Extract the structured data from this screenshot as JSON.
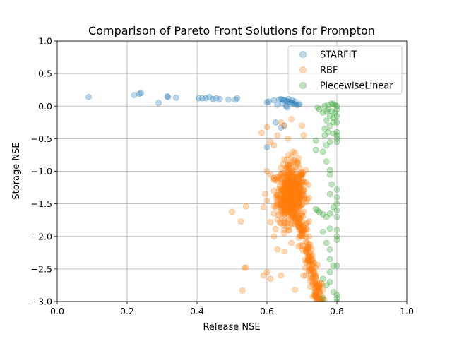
{
  "chart_data": {
    "type": "scatter",
    "title": "Comparison of Pareto Front Solutions for Prompton",
    "xlabel": "Release NSE",
    "ylabel": "Storage NSE",
    "xlim": [
      0.0,
      1.0
    ],
    "ylim": [
      -3.0,
      1.0
    ],
    "xticks": [
      "0.0",
      "0.2",
      "0.4",
      "0.6",
      "0.8",
      "1.0"
    ],
    "yticks": [
      "1.0",
      "0.5",
      "0.0",
      "−0.5",
      "−1.0",
      "−1.5",
      "−2.0",
      "−2.5",
      "−3.0"
    ],
    "grid": true,
    "legend_position": "top-right",
    "series": [
      {
        "name": "STARFIT",
        "color": "#1f77b4",
        "points": [
          [
            0.09,
            0.14
          ],
          [
            0.22,
            0.17
          ],
          [
            0.235,
            0.19
          ],
          [
            0.24,
            0.2
          ],
          [
            0.29,
            0.05
          ],
          [
            0.315,
            0.15
          ],
          [
            0.317,
            0.14
          ],
          [
            0.34,
            0.13
          ],
          [
            0.405,
            0.12
          ],
          [
            0.415,
            0.12
          ],
          [
            0.425,
            0.12
          ],
          [
            0.435,
            0.14
          ],
          [
            0.445,
            0.11
          ],
          [
            0.455,
            0.12
          ],
          [
            0.465,
            0.11
          ],
          [
            0.49,
            0.1
          ],
          [
            0.51,
            0.1
          ],
          [
            0.515,
            0.12
          ],
          [
            0.6,
            0.06
          ],
          [
            0.605,
            0.07
          ],
          [
            0.6,
            -0.63
          ],
          [
            0.62,
            0.09
          ],
          [
            0.625,
            -0.25
          ],
          [
            0.635,
            0.1
          ],
          [
            0.64,
            0.11
          ],
          [
            0.645,
            0.1
          ],
          [
            0.65,
            0.09
          ],
          [
            0.655,
            0.08
          ],
          [
            0.66,
            0.07
          ],
          [
            0.665,
            0.06
          ],
          [
            0.67,
            0.05
          ],
          [
            0.675,
            0.04
          ],
          [
            0.68,
            0.03
          ],
          [
            0.685,
            0.02
          ],
          [
            0.69,
            0.02
          ],
          [
            0.64,
            -0.33
          ],
          [
            0.65,
            -0.3
          ],
          [
            0.658,
            -0.02
          ],
          [
            0.645,
            0.04
          ],
          [
            0.672,
            0.09
          ],
          [
            0.662,
            0.11
          ],
          [
            0.63,
            0.02
          ],
          [
            0.68,
            0.07
          ],
          [
            0.693,
            0.03
          ],
          [
            0.655,
            0.0
          ]
        ]
      },
      {
        "name": "RBF",
        "color": "#ff7f0e",
        "points": [
          [
            0.585,
            -0.41
          ],
          [
            0.6,
            -0.32
          ],
          [
            0.64,
            -0.25
          ],
          [
            0.65,
            -0.3
          ],
          [
            0.67,
            -0.2
          ],
          [
            0.7,
            -0.3
          ],
          [
            0.705,
            -0.45
          ],
          [
            0.61,
            -0.55
          ],
          [
            0.62,
            -0.6
          ],
          [
            0.63,
            -0.45
          ],
          [
            0.66,
            -0.5
          ],
          [
            0.675,
            -0.7
          ],
          [
            0.6,
            -1.0
          ],
          [
            0.61,
            -1.05
          ],
          [
            0.62,
            -1.1
          ],
          [
            0.595,
            -1.35
          ],
          [
            0.6,
            -1.45
          ],
          [
            0.59,
            -1.55
          ],
          [
            0.62,
            -1.65
          ],
          [
            0.61,
            -1.78
          ],
          [
            0.5,
            -1.62
          ],
          [
            0.525,
            -1.77
          ],
          [
            0.54,
            -1.54
          ],
          [
            0.535,
            -2.48
          ],
          [
            0.54,
            -2.48
          ],
          [
            0.53,
            -2.83
          ],
          [
            0.59,
            -2.6
          ],
          [
            0.6,
            -2.55
          ],
          [
            0.61,
            -2.65
          ],
          [
            0.63,
            -2.2
          ],
          [
            0.65,
            -2.23
          ],
          [
            0.67,
            -2.1
          ],
          [
            0.69,
            -2.15
          ],
          [
            0.64,
            -2.6
          ],
          [
            0.68,
            -2.82
          ],
          [
            0.72,
            -2.3
          ],
          [
            0.73,
            -2.45
          ],
          [
            0.74,
            -2.6
          ],
          [
            0.745,
            -2.8
          ],
          [
            0.75,
            -2.95
          ],
          [
            0.755,
            -3.0
          ],
          [
            0.735,
            -2.9
          ],
          [
            0.71,
            -2.2
          ],
          [
            0.7,
            -1.95
          ],
          [
            0.72,
            -2.0
          ],
          [
            0.715,
            -1.8
          ],
          [
            0.71,
            -1.9
          ],
          [
            0.65,
            -1.9
          ],
          [
            0.66,
            -1.85
          ],
          [
            0.62,
            -2.0
          ],
          [
            0.68,
            -1.7
          ],
          [
            0.69,
            -1.85
          ],
          [
            0.7,
            -1.65
          ],
          [
            0.73,
            -2.7
          ],
          [
            0.74,
            -2.9
          ],
          [
            0.725,
            -2.5
          ],
          [
            0.705,
            -2.6
          ],
          [
            0.74,
            -2.75
          ],
          [
            0.75,
            -2.85
          ],
          [
            0.728,
            -2.35
          ],
          [
            0.64,
            -1.8
          ],
          [
            0.66,
            -1.75
          ],
          [
            0.67,
            -1.8
          ],
          [
            0.63,
            -1.15
          ],
          [
            0.64,
            -0.95
          ],
          [
            0.65,
            -0.82
          ],
          [
            0.66,
            -0.9
          ],
          [
            0.67,
            -0.78
          ],
          [
            0.68,
            -0.72
          ],
          [
            0.69,
            -0.8
          ]
        ],
        "cluster": {
          "x_min": 0.62,
          "x_max": 0.72,
          "y_min": -1.7,
          "y_max": -0.75,
          "center": [
            0.67,
            -1.35
          ],
          "approx_count": 500
        }
      },
      {
        "name": "PiecewiseLinear",
        "color": "#2ca02c",
        "points": [
          [
            0.745,
            -0.02
          ],
          [
            0.75,
            -0.05
          ],
          [
            0.76,
            -0.1
          ],
          [
            0.765,
            0.0
          ],
          [
            0.77,
            -0.08
          ],
          [
            0.775,
            0.02
          ],
          [
            0.78,
            -0.15
          ],
          [
            0.785,
            0.04
          ],
          [
            0.79,
            0.03
          ],
          [
            0.795,
            0.02
          ],
          [
            0.8,
            0.0
          ],
          [
            0.8,
            -0.05
          ],
          [
            0.8,
            -0.15
          ],
          [
            0.79,
            -0.25
          ],
          [
            0.78,
            -0.3
          ],
          [
            0.77,
            -0.22
          ],
          [
            0.775,
            -0.4
          ],
          [
            0.8,
            -0.4
          ],
          [
            0.8,
            -0.45
          ],
          [
            0.8,
            -0.5
          ],
          [
            0.8,
            -0.55
          ],
          [
            0.79,
            -0.42
          ],
          [
            0.78,
            -0.55
          ],
          [
            0.77,
            -0.6
          ],
          [
            0.765,
            -0.45
          ],
          [
            0.74,
            -0.53
          ],
          [
            0.74,
            -0.67
          ],
          [
            0.76,
            -0.7
          ],
          [
            0.77,
            -0.85
          ],
          [
            0.78,
            -0.98
          ],
          [
            0.78,
            -1.05
          ],
          [
            0.785,
            -1.2
          ],
          [
            0.78,
            -1.35
          ],
          [
            0.8,
            -1.28
          ],
          [
            0.8,
            -1.4
          ],
          [
            0.8,
            -1.5
          ],
          [
            0.8,
            -1.6
          ],
          [
            0.8,
            -1.7
          ],
          [
            0.79,
            -1.55
          ],
          [
            0.78,
            -1.65
          ],
          [
            0.74,
            -1.58
          ],
          [
            0.745,
            -1.6
          ],
          [
            0.75,
            -1.63
          ],
          [
            0.76,
            -1.66
          ],
          [
            0.77,
            -1.7
          ],
          [
            0.78,
            -1.88
          ],
          [
            0.76,
            -1.93
          ],
          [
            0.8,
            -1.9
          ],
          [
            0.8,
            -2.0
          ],
          [
            0.8,
            -2.05
          ],
          [
            0.77,
            -2.1
          ],
          [
            0.78,
            -2.2
          ],
          [
            0.78,
            -2.35
          ],
          [
            0.79,
            -2.45
          ],
          [
            0.8,
            -2.45
          ],
          [
            0.78,
            -2.55
          ],
          [
            0.76,
            -2.65
          ],
          [
            0.78,
            -2.7
          ],
          [
            0.79,
            -2.85
          ],
          [
            0.8,
            -2.9
          ],
          [
            0.8,
            -2.95
          ],
          [
            0.8,
            -3.0
          ],
          [
            0.76,
            -2.95
          ],
          [
            0.77,
            -2.75
          ],
          [
            0.765,
            -0.35
          ],
          [
            0.775,
            -0.05
          ],
          [
            0.79,
            -0.18
          ],
          [
            0.8,
            -0.25
          ],
          [
            0.795,
            -0.1
          ],
          [
            0.785,
            -0.08
          ]
        ]
      }
    ]
  }
}
